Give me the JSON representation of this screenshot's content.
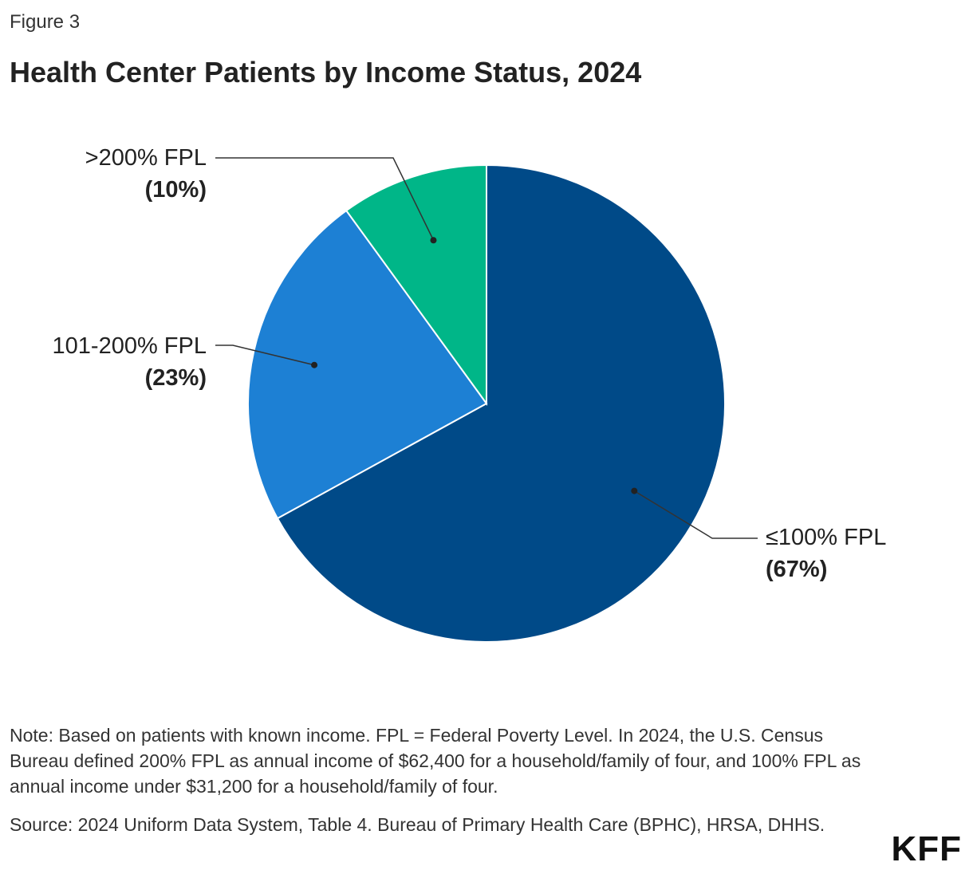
{
  "figure_label": "Figure 3",
  "title": "Health Center Patients by Income Status, 2024",
  "chart_data": {
    "type": "pie",
    "title": "Health Center Patients by Income Status, 2024",
    "slices": [
      {
        "label": "≤100% FPL",
        "value": 67,
        "value_label": "(67%)",
        "color": "#004A88"
      },
      {
        "label": "101-200% FPL",
        "value": 23,
        "value_label": "(23%)",
        "color": "#1D80D4"
      },
      {
        "label": ">200% FPL",
        "value": 10,
        "value_label": "(10%)",
        "color": "#00B688"
      }
    ]
  },
  "note": "Note: Based on patients with known income. FPL = Federal Poverty Level. In 2024, the U.S. Census Bureau defined 200% FPL as annual income of $62,400 for a household/family of four, and 100% FPL as annual income under $31,200 for a household/family of four.",
  "source": "Source: 2024 Uniform Data System, Table 4. Bureau of Primary Health Care (BPHC), HRSA, DHHS.",
  "logo": "KFF"
}
